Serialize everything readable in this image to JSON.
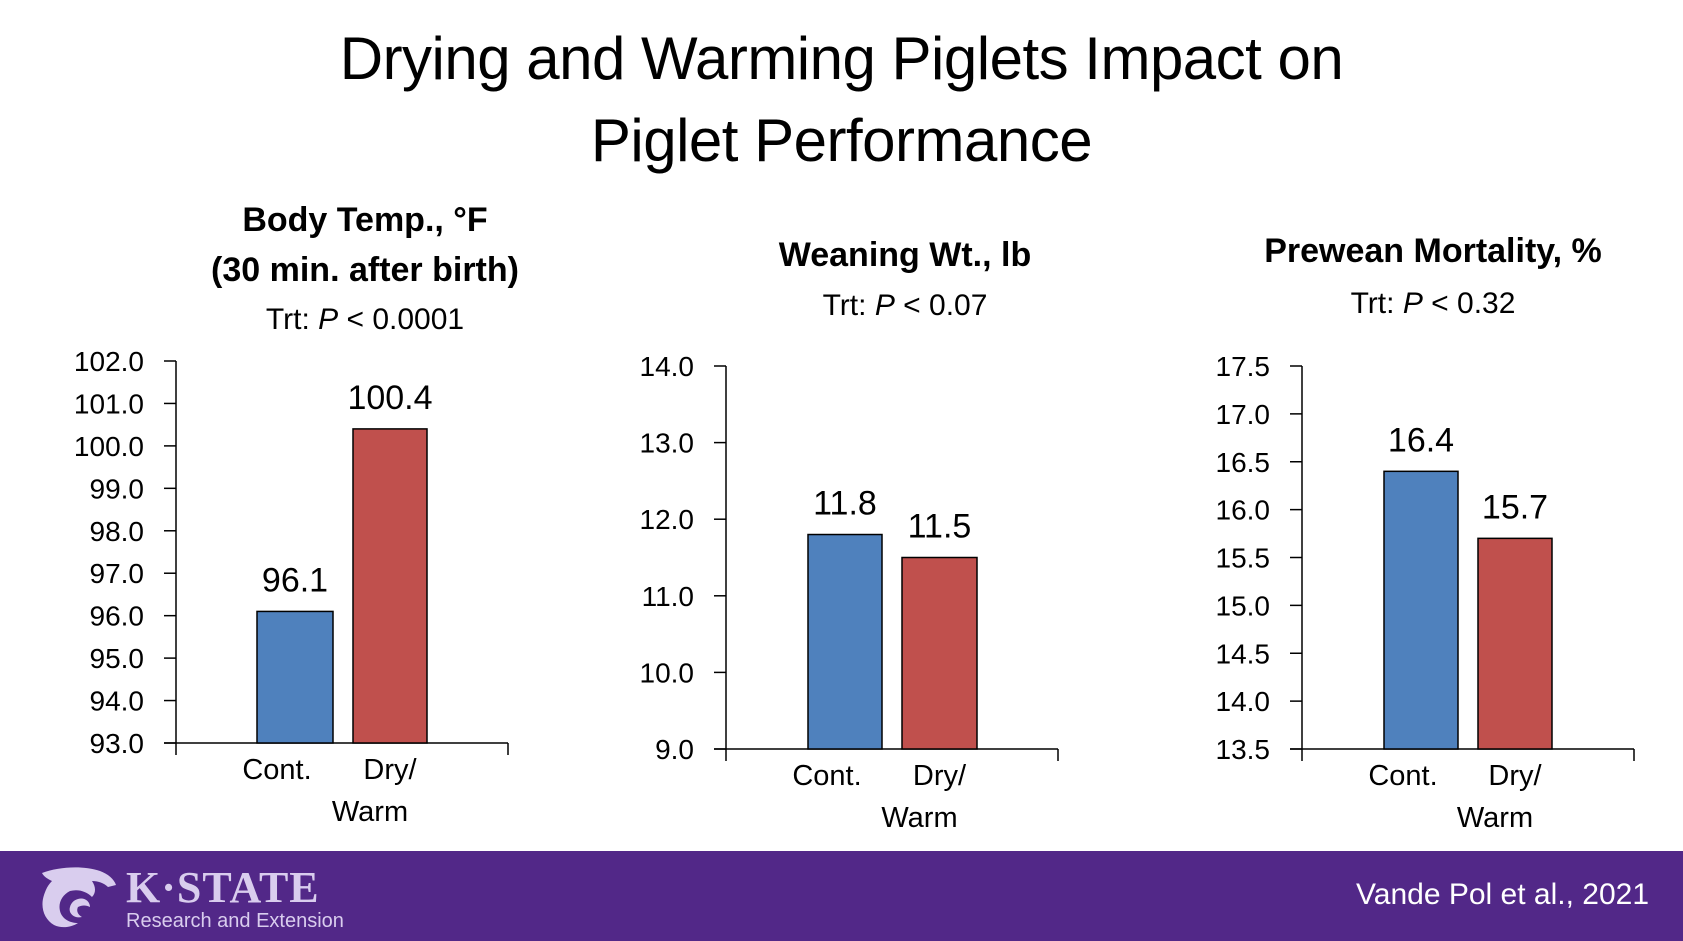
{
  "slide": {
    "title_line1": "Drying and Warming Piglets Impact on",
    "title_line2": "Piglet Performance"
  },
  "colors": {
    "control": "#4f81bd",
    "treatment": "#c0504d",
    "footer": "#522888",
    "logo": "#d9cdee"
  },
  "chart_data": [
    {
      "type": "bar",
      "title": "Body Temp., °F",
      "title_line2": "(30 min. after birth)",
      "subtitle_prefix": "Trt: ",
      "subtitle_p": "P",
      "subtitle_suffix": " < 0.0001",
      "categories": [
        "Cont.",
        "Dry/\nWarm"
      ],
      "category_lines": [
        [
          "Cont."
        ],
        [
          "Dry/",
          "Warm"
        ]
      ],
      "values": [
        96.1,
        100.4
      ],
      "data_labels": [
        "96.1",
        "100.4"
      ],
      "ylim": [
        93.0,
        102.0
      ],
      "yticks": [
        93.0,
        94.0,
        95.0,
        96.0,
        97.0,
        98.0,
        99.0,
        100.0,
        101.0,
        102.0
      ],
      "ytick_labels": [
        "93.0",
        "94.0",
        "95.0",
        "96.0",
        "97.0",
        "98.0",
        "99.0",
        "100.0",
        "101.0",
        "102.0"
      ],
      "xlabel": "",
      "ylabel": "",
      "grid": false,
      "legend": "none"
    },
    {
      "type": "bar",
      "title": "Weaning Wt., lb",
      "title_line2": "",
      "subtitle_prefix": "Trt: ",
      "subtitle_p": "P",
      "subtitle_suffix": " < 0.07",
      "categories": [
        "Cont.",
        "Dry/\nWarm"
      ],
      "category_lines": [
        [
          "Cont."
        ],
        [
          "Dry/",
          "Warm"
        ]
      ],
      "values": [
        11.8,
        11.5
      ],
      "data_labels": [
        "11.8",
        "11.5"
      ],
      "ylim": [
        9.0,
        14.0
      ],
      "yticks": [
        9.0,
        10.0,
        11.0,
        12.0,
        13.0,
        14.0
      ],
      "ytick_labels": [
        "9.0",
        "10.0",
        "11.0",
        "12.0",
        "13.0",
        "14.0"
      ],
      "xlabel": "",
      "ylabel": "",
      "grid": false,
      "legend": "none"
    },
    {
      "type": "bar",
      "title": "Prewean Mortality, %",
      "title_line2": "",
      "subtitle_prefix": "Trt: ",
      "subtitle_p": "P",
      "subtitle_suffix": " < 0.32",
      "categories": [
        "Cont.",
        "Dry/\nWarm"
      ],
      "category_lines": [
        [
          "Cont."
        ],
        [
          "Dry/",
          "Warm"
        ]
      ],
      "values": [
        16.4,
        15.7
      ],
      "data_labels": [
        "16.4",
        "15.7"
      ],
      "ylim": [
        13.5,
        17.5
      ],
      "yticks": [
        13.5,
        14.0,
        14.5,
        15.0,
        15.5,
        16.0,
        16.5,
        17.0,
        17.5
      ],
      "ytick_labels": [
        "13.5",
        "14.0",
        "14.5",
        "15.0",
        "15.5",
        "16.0",
        "16.5",
        "17.0",
        "17.5"
      ],
      "xlabel": "",
      "ylabel": "",
      "grid": false,
      "legend": "none"
    }
  ],
  "footer": {
    "logo_wordmark": "K·STATE",
    "logo_subtitle": "Research and Extension",
    "logo_icon": "wildcat-icon",
    "citation": "Vande Pol et al., 2021"
  }
}
